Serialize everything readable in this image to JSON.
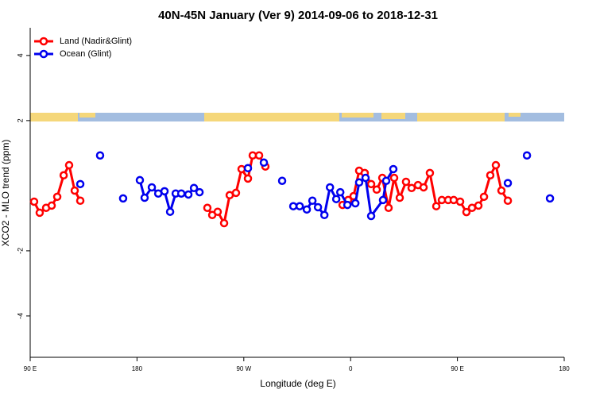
{
  "chart_data": {
    "type": "line",
    "title": "40N-45N January (Ver 9)   2014-09-06 to 2018-12-31",
    "x_label": "Longitude (deg E)",
    "y_label": "XCO2 - MLO trend (ppm)",
    "xlim": [
      90,
      540
    ],
    "ylim": [
      -5.27,
      4.85
    ],
    "xticks": [
      {
        "value": 90,
        "label": "90 E"
      },
      180,
      {
        "value": 270,
        "label": "90 W"
      },
      {
        "value": 360,
        "label": "0"
      },
      {
        "value": 450,
        "label": "90 E"
      },
      {
        "value": 540,
        "label": "180"
      }
    ],
    "yticks": [
      -4,
      -2,
      2,
      4
    ],
    "legend": "top-left",
    "series": [
      {
        "name": "Land (Nadir&Glint)",
        "color": "#ff0000",
        "x": [
          93.3,
          98.0,
          103.4,
          108.1,
          112.8,
          118.2,
          122.8,
          127.5,
          132.2,
          null,
          239.3,
          243.4,
          248.0,
          253.4,
          258.1,
          263.4,
          268.1,
          273.5,
          277.5,
          282.9,
          288.2,
          null,
          353.2,
          357.9,
          362.5,
          367.2,
          371.9,
          377.3,
          382.0,
          386.7,
          392.0,
          396.7,
          401.4,
          406.7,
          411.4,
          416.8,
          421.5,
          426.8,
          432.2,
          436.9,
          442.2,
          446.9,
          452.3,
          457.6,
          462.3,
          467.7,
          472.4,
          477.7,
          482.4,
          487.1,
          492.5
        ],
        "values": [
          -0.49,
          -0.83,
          -0.68,
          -0.61,
          -0.34,
          0.32,
          0.63,
          -0.15,
          -0.46,
          null,
          -0.68,
          -0.9,
          -0.8,
          -1.15,
          -0.29,
          -0.22,
          0.51,
          0.22,
          0.93,
          0.93,
          0.59,
          null,
          -0.59,
          -0.44,
          -0.32,
          0.46,
          0.39,
          0.05,
          -0.12,
          0.24,
          -0.68,
          0.24,
          -0.37,
          0.12,
          -0.07,
          0.02,
          -0.05,
          0.39,
          -0.63,
          -0.44,
          -0.44,
          -0.44,
          -0.49,
          -0.81,
          -0.68,
          -0.61,
          -0.34,
          0.32,
          0.63,
          -0.15,
          -0.46
        ]
      },
      {
        "name": "Ocean (Glint)",
        "color": "#0000ee",
        "x": [
          132.2,
          null,
          148.9,
          null,
          168.3,
          null,
          182.4,
          186.4,
          192.5,
          197.9,
          203.2,
          207.9,
          212.6,
          217.3,
          223.3,
          228.0,
          232.7,
          null,
          273.5,
          null,
          286.9,
          null,
          302.3,
          null,
          311.7,
          317.1,
          323.1,
          327.8,
          332.5,
          337.9,
          342.6,
          347.9,
          351.3,
          357.3,
          364.0,
          367.2,
          372.6,
          377.3,
          387.3,
          390.0,
          396.0,
          null,
          492.5,
          null,
          508.6,
          null,
          528.0
        ],
        "values": [
          0.05,
          null,
          0.93,
          null,
          -0.39,
          null,
          0.17,
          -0.37,
          -0.05,
          -0.24,
          -0.17,
          -0.8,
          -0.24,
          -0.24,
          -0.27,
          -0.07,
          -0.2,
          null,
          0.54,
          null,
          0.71,
          null,
          0.15,
          null,
          -0.63,
          -0.63,
          -0.73,
          -0.46,
          -0.66,
          -0.9,
          -0.05,
          -0.41,
          -0.2,
          -0.59,
          -0.54,
          0.1,
          0.24,
          -0.93,
          -0.44,
          0.15,
          0.51,
          null,
          0.08,
          null,
          0.93,
          null,
          -0.39
        ]
      }
    ]
  }
}
